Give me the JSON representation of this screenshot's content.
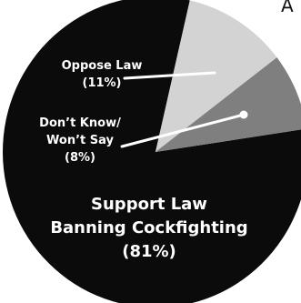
{
  "chart_data": {
    "type": "pie",
    "title": "",
    "colors": {
      "support": "#0b0b0b",
      "oppose": "#d3d3d3",
      "unsure": "#7f7f7f",
      "label_text": "#ffffff",
      "leader_line": "#ffffff"
    },
    "slices": [
      {
        "id": "support",
        "label_lines": [
          "Support Law",
          "Banning Cockfighting"
        ],
        "percent_label": "(81%)",
        "value": 81
      },
      {
        "id": "oppose",
        "label_lines": [
          "Oppose Law"
        ],
        "percent_label": "(11%)",
        "value": 11
      },
      {
        "id": "unsure",
        "label_lines": [
          "Don’t Know/",
          "Won’t Say"
        ],
        "percent_label": "(8%)",
        "value": 8
      }
    ]
  },
  "header_fragment": "A"
}
